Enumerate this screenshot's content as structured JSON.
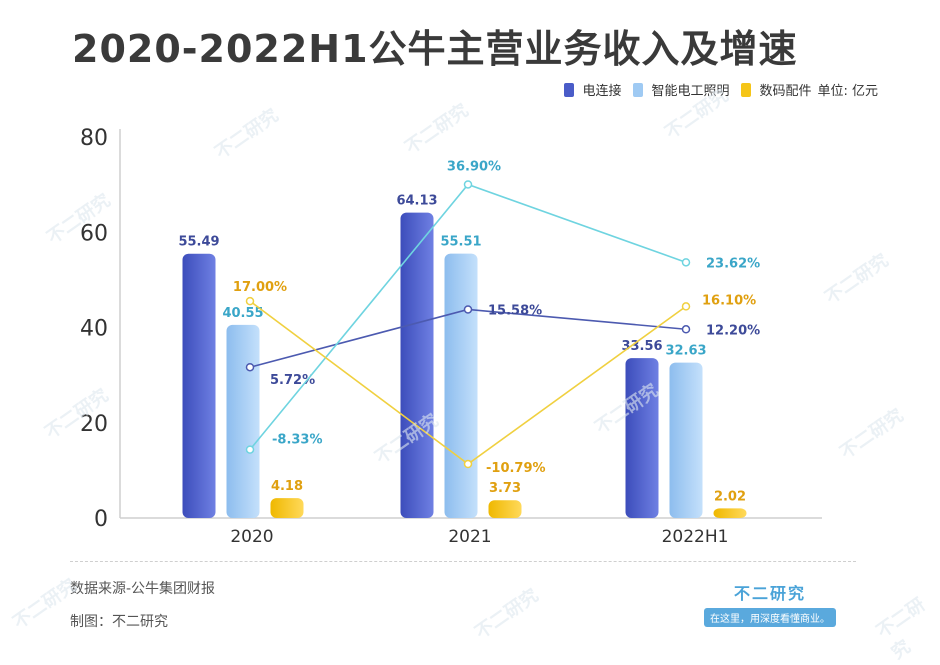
{
  "title": "2020-2022H1公牛主营业务收入及增速",
  "unit_label": "单位: 亿元",
  "source": "数据来源-公牛集团财报",
  "made_by": "制图：不二研究",
  "brand": {
    "name": "不二研究",
    "slogan": "在这里，用深度看懂商业。"
  },
  "watermark": "不二研究",
  "colors": {
    "s1": "#4a5cc8",
    "s1_line": "#4c5ab0",
    "s2": "#9fcaf3",
    "s2_line": "#6fd4e0",
    "s3": "#f5c518",
    "s3_line": "#f0d040",
    "s1_label": "#3d4a99",
    "s2_label": "#3aa6c8",
    "s3_label": "#e0a010"
  },
  "chart_data": {
    "type": "bar+line",
    "categories": [
      "2020",
      "2021",
      "2022H1"
    ],
    "ylim": [
      0,
      80
    ],
    "yticks": [
      "0",
      "20",
      "40",
      "60",
      "80"
    ],
    "series": [
      {
        "name": "电连接",
        "values": [
          55.49,
          64.13,
          33.56
        ],
        "labels": [
          "55.49",
          "64.13",
          "33.56"
        ],
        "growth": [
          5.72,
          15.58,
          12.2
        ],
        "growth_labels": [
          "5.72%",
          "15.58%",
          "12.20%"
        ]
      },
      {
        "name": "智能电工照明",
        "values": [
          40.55,
          55.51,
          32.63
        ],
        "labels": [
          "40.55",
          "55.51",
          "32.63"
        ],
        "growth": [
          -8.33,
          36.9,
          23.62
        ],
        "growth_labels": [
          "-8.33%",
          "36.90%",
          "23.62%"
        ]
      },
      {
        "name": "数码配件",
        "values": [
          4.18,
          3.73,
          2.02
        ],
        "labels": [
          "4.18",
          "3.73",
          "2.02"
        ],
        "growth": [
          17.0,
          -10.79,
          16.1
        ],
        "growth_labels": [
          "17.00%",
          "-10.79%",
          "16.10%"
        ]
      }
    ]
  }
}
